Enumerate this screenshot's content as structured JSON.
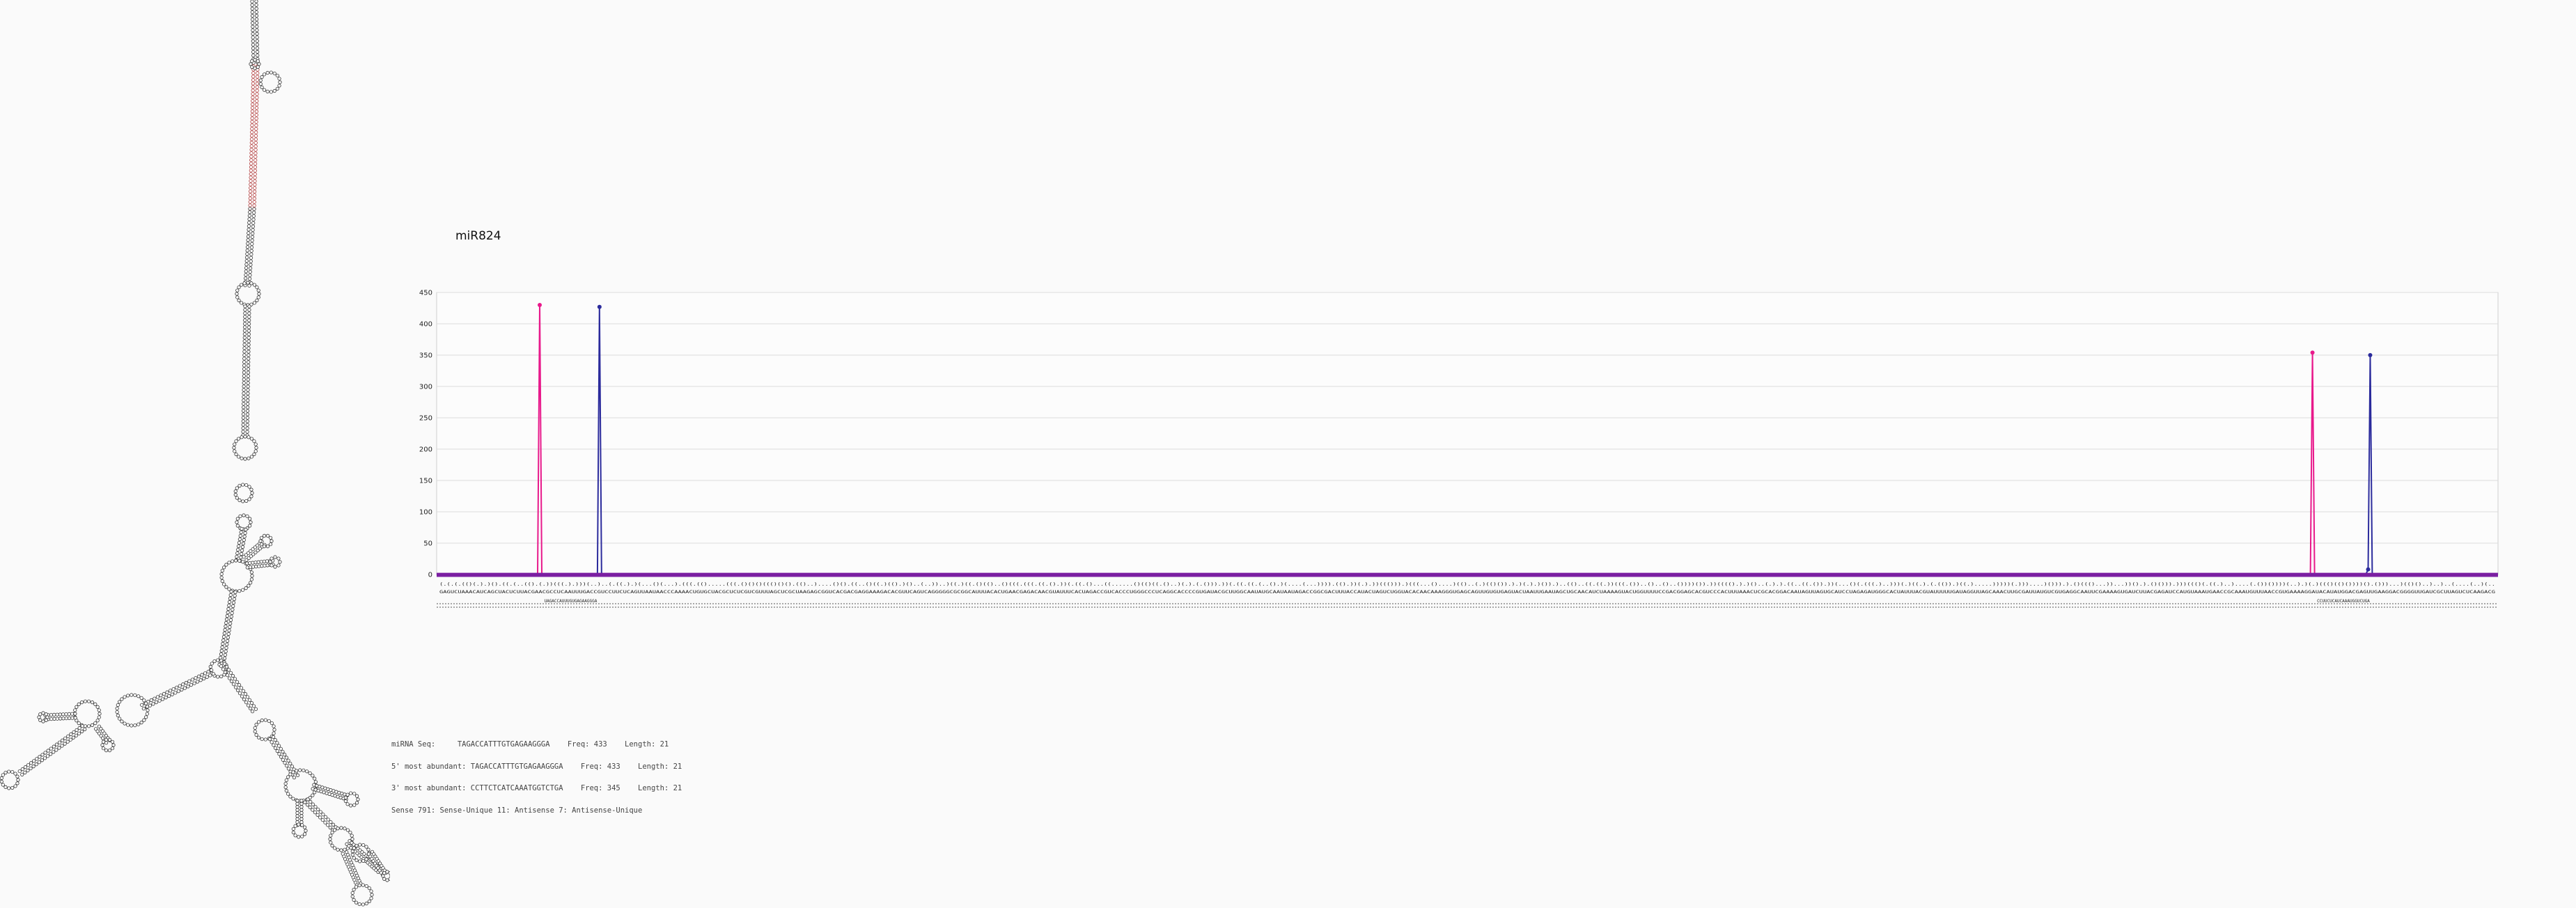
{
  "chart_data": {
    "type": "line",
    "title": "miR824",
    "ylim": [
      0,
      450
    ],
    "yticks": [
      0,
      50,
      100,
      150,
      200,
      250,
      300,
      350,
      400,
      450
    ],
    "x_range": [
      0,
      1000
    ],
    "series": [
      {
        "color": "#e8198b",
        "points": [
          [
            0,
            0
          ],
          [
            48,
            0
          ],
          [
            49,
            1
          ],
          [
            50,
            430
          ],
          [
            51,
            1
          ],
          [
            52,
            0
          ],
          [
            908,
            0
          ],
          [
            909,
            1
          ],
          [
            910,
            354
          ],
          [
            911,
            1
          ],
          [
            912,
            0
          ],
          [
            1000,
            0
          ]
        ]
      },
      {
        "color": "#2b2b9c",
        "points": [
          [
            0,
            0
          ],
          [
            77,
            0
          ],
          [
            78,
            2
          ],
          [
            79,
            427
          ],
          [
            80,
            2
          ],
          [
            81,
            0
          ],
          [
            935,
            0
          ],
          [
            936,
            1
          ],
          [
            937,
            8
          ],
          [
            938,
            350
          ],
          [
            939,
            2
          ],
          [
            940,
            0
          ],
          [
            1000,
            0
          ]
        ]
      },
      {
        "color": "#7b1fa2",
        "points": [
          [
            0,
            1
          ],
          [
            1000,
            1
          ]
        ]
      }
    ],
    "mature_labels": [
      {
        "text": "UAGACCAUUUGUGAGAAGGGA",
        "x": 65
      },
      {
        "text": "CCUUCUCAUCAAAUGGUCUGA",
        "x": 925
      }
    ]
  },
  "info_lines": [
    "miRNA Seq:     TAGACCATTTGTGAGAAGGGA    Freq: 433    Length: 21",
    "5' most abundant: TAGACCATTTGTGAGAAGGGA    Freq: 433    Length: 21",
    "3' most abundant: CCTTCTCATCAAATGGTCTGA    Freq: 345    Length: 21",
    "Sense 791: Sense-Unique 11: Antisense 7: Antisense-Unique"
  ],
  "colors": {
    "pink": "#e8198b",
    "navy": "#2b2b9c",
    "purple": "#7b1fa2",
    "grid": "#dddddd"
  },
  "structure": {
    "icon": "rna-secondary-structure-diagram"
  }
}
